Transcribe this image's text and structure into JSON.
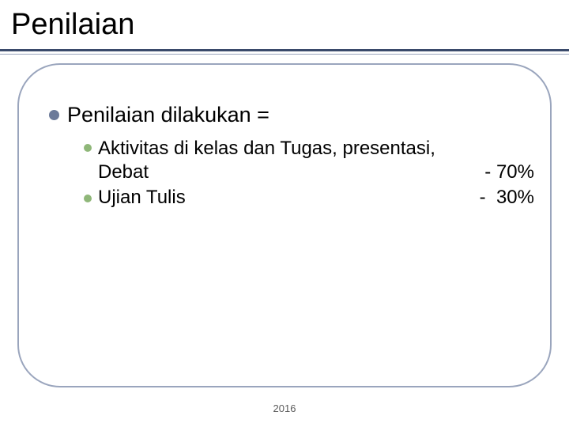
{
  "colors": {
    "background": "#ffffff",
    "title_text": "#000000",
    "underline_thick": "#3a4a6b",
    "underline_thin": "#9aa5bd",
    "frame_border": "#9aa5bd",
    "bullet_level1": "#6b7a99",
    "bullet_level2": "#8fb779",
    "body_text": "#000000",
    "footer_text": "#5a5a5a"
  },
  "typography": {
    "title_fontsize": 38,
    "level1_fontsize": 27,
    "level2_fontsize": 24,
    "footer_fontsize": 13,
    "font_family": "Arial"
  },
  "layout": {
    "slide_width": 720,
    "slide_height": 540,
    "frame_border_radius": 54
  },
  "title": "Penilaian",
  "level1": {
    "text": "Penilaian dilakukan ="
  },
  "items": [
    {
      "text_line1": "Aktivitas di kelas dan Tugas, presentasi,",
      "text_line2_label": "Debat",
      "text_line2_value": "- 70%"
    },
    {
      "label": "Ujian Tulis",
      "value": "-  30%"
    }
  ],
  "footer": "2016"
}
